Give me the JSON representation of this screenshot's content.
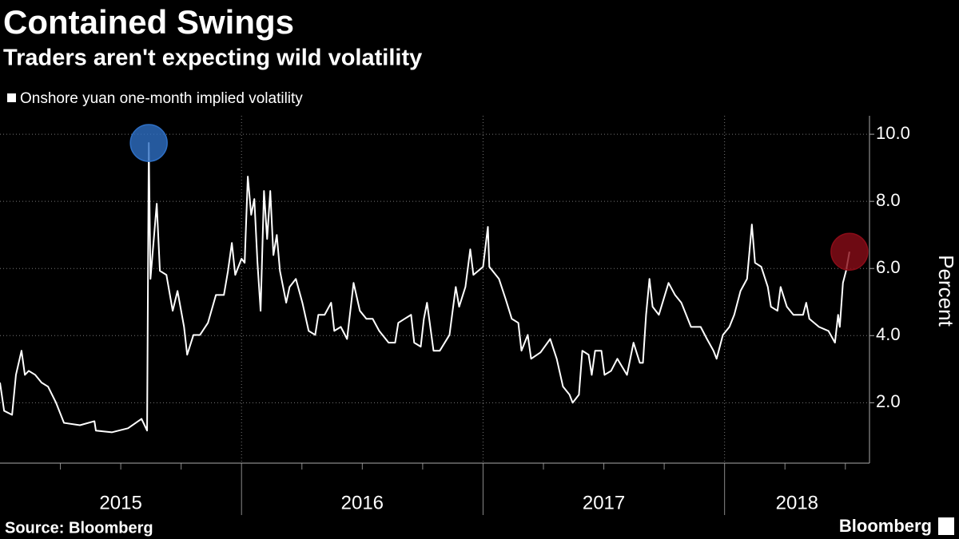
{
  "chart_data": {
    "type": "line",
    "title": "Contained Swings",
    "subtitle": "Traders aren't expecting wild volatility",
    "y_label": "Percent",
    "source": "Source: Bloomberg",
    "brand": "Bloomberg",
    "xlim": [
      2015,
      2018.6
    ],
    "ylim": [
      0.2,
      10.55
    ],
    "yticks": [
      {
        "value": 2,
        "label": "2.0"
      },
      {
        "value": 4,
        "label": "4.0"
      },
      {
        "value": 6,
        "label": "6.0"
      },
      {
        "value": 8,
        "label": "8.0"
      },
      {
        "value": 10,
        "label": "10.0"
      }
    ],
    "xticks": [
      {
        "value": 2015.5,
        "label": "2015"
      },
      {
        "value": 2016.5,
        "label": "2016"
      },
      {
        "value": 2017.5,
        "label": "2017"
      },
      {
        "value": 2018.3,
        "label": "2018"
      }
    ],
    "xgrid": [
      2016,
      2017,
      2018
    ],
    "xminorticks": [
      2015.25,
      2015.5,
      2015.75,
      2016.25,
      2016.5,
      2016.75,
      2017.25,
      2017.5,
      2017.75,
      2018.25,
      2018.5
    ],
    "grid": true,
    "highlights": [
      {
        "index": 19,
        "color": "#2e6fc4"
      },
      {
        "index": 148,
        "color": "#8a0c18"
      }
    ],
    "series": [
      {
        "name": "Onshore yuan one-month implied volatility",
        "color": "#ffffff",
        "x": [
          2015.0,
          2015.017,
          2015.05,
          2015.066,
          2015.089,
          2015.103,
          2015.119,
          2015.146,
          2015.172,
          2015.199,
          2015.232,
          2015.265,
          2015.331,
          2015.391,
          2015.397,
          2015.464,
          2015.53,
          2015.586,
          2015.609,
          2015.616,
          2015.623,
          2015.649,
          2015.662,
          2015.689,
          2015.715,
          2015.735,
          2015.762,
          2015.775,
          2015.801,
          2015.828,
          2015.861,
          2015.894,
          2015.927,
          2015.944,
          2015.96,
          2015.974,
          2016.0,
          2016.013,
          2016.026,
          2016.04,
          2016.053,
          2016.066,
          2016.079,
          2016.093,
          2016.106,
          2016.119,
          2016.132,
          2016.146,
          2016.159,
          2016.185,
          2016.199,
          2016.225,
          2016.252,
          2016.278,
          2016.305,
          2016.318,
          2016.344,
          2016.371,
          2016.384,
          2016.411,
          2016.437,
          2016.464,
          2016.49,
          2016.517,
          2016.543,
          2016.57,
          2016.609,
          2016.636,
          2016.649,
          2016.675,
          2016.702,
          2016.715,
          2016.742,
          2016.755,
          2016.768,
          2016.795,
          2016.821,
          2016.861,
          2016.887,
          2016.901,
          2016.927,
          2016.947,
          2016.96,
          2017.0,
          2017.02,
          2017.026,
          2017.066,
          2017.093,
          2017.119,
          2017.146,
          2017.159,
          2017.185,
          2017.199,
          2017.238,
          2017.278,
          2017.305,
          2017.331,
          2017.358,
          2017.371,
          2017.397,
          2017.411,
          2017.437,
          2017.45,
          2017.464,
          2017.49,
          2017.503,
          2017.53,
          2017.556,
          2017.596,
          2017.623,
          2017.649,
          2017.662,
          2017.675,
          2017.689,
          2017.702,
          2017.728,
          2017.768,
          2017.795,
          2017.821,
          2017.861,
          2017.901,
          2017.927,
          2017.954,
          2017.967,
          2017.993,
          2018.02,
          2018.04,
          2018.066,
          2018.093,
          2018.113,
          2018.126,
          2018.152,
          2018.179,
          2018.192,
          2018.219,
          2018.232,
          2018.258,
          2018.285,
          2018.325,
          2018.338,
          2018.351,
          2018.391,
          2018.43,
          2018.457,
          2018.47,
          2018.477,
          2018.49,
          2018.503,
          2018.517
        ],
        "values": [
          2.6,
          1.76,
          1.64,
          2.83,
          3.55,
          2.83,
          2.95,
          2.83,
          2.6,
          2.48,
          2.0,
          1.4,
          1.33,
          1.45,
          1.17,
          1.12,
          1.24,
          1.52,
          1.17,
          9.74,
          5.69,
          7.93,
          5.93,
          5.81,
          4.74,
          5.33,
          4.26,
          3.43,
          4.02,
          4.02,
          4.38,
          5.21,
          5.21,
          5.93,
          6.76,
          5.81,
          6.29,
          6.17,
          8.74,
          7.6,
          8.07,
          6.17,
          4.74,
          8.31,
          6.88,
          8.31,
          6.4,
          7.0,
          5.93,
          4.98,
          5.45,
          5.69,
          4.98,
          4.14,
          4.02,
          4.62,
          4.62,
          4.98,
          4.14,
          4.26,
          3.9,
          5.57,
          4.74,
          4.5,
          4.5,
          4.14,
          3.79,
          3.79,
          4.38,
          4.5,
          4.62,
          3.79,
          3.67,
          4.5,
          4.98,
          3.55,
          3.55,
          4.02,
          5.45,
          4.86,
          5.45,
          6.57,
          5.81,
          6.05,
          7.24,
          6.05,
          5.69,
          5.1,
          4.5,
          4.38,
          3.55,
          4.02,
          3.31,
          3.5,
          3.9,
          3.31,
          2.48,
          2.24,
          2.0,
          2.24,
          3.55,
          3.43,
          2.83,
          3.55,
          3.55,
          2.83,
          2.95,
          3.31,
          2.83,
          3.79,
          3.19,
          3.19,
          4.62,
          5.69,
          4.86,
          4.62,
          5.57,
          5.21,
          4.98,
          4.26,
          4.26,
          3.9,
          3.55,
          3.31,
          4.02,
          4.26,
          4.62,
          5.33,
          5.69,
          7.31,
          6.17,
          6.05,
          5.45,
          4.86,
          4.74,
          5.45,
          4.86,
          4.62,
          4.62,
          4.98,
          4.5,
          4.26,
          4.14,
          3.79,
          4.62,
          4.26,
          5.57,
          5.93,
          6.5
        ]
      }
    ]
  }
}
